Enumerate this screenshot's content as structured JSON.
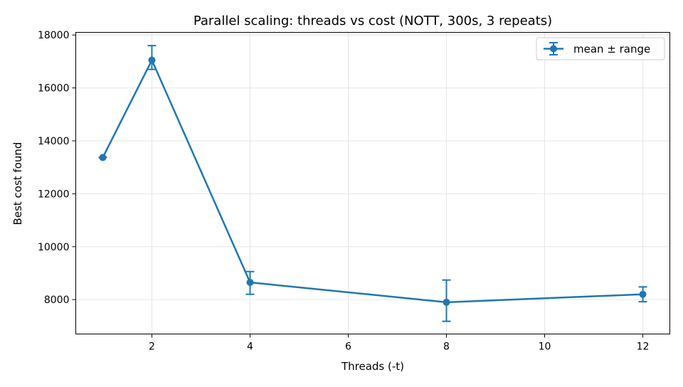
{
  "chart_data": {
    "type": "line",
    "title": "Parallel scaling: threads vs cost (NOTT, 300s, 3 repeats)",
    "xlabel": "Threads (-t)",
    "ylabel": "Best cost found",
    "xlim": [
      0.45,
      12.55
    ],
    "ylim": [
      6700,
      18100
    ],
    "xticks": [
      2,
      4,
      6,
      8,
      10,
      12
    ],
    "yticks": [
      8000,
      10000,
      12000,
      14000,
      16000,
      18000
    ],
    "grid": true,
    "legend_position": "top-right",
    "series": [
      {
        "name": "mean ± range",
        "color": "#1f77b4",
        "x": [
          1,
          2,
          4,
          8,
          12
        ],
        "y": [
          13370,
          17050,
          8650,
          7900,
          8200
        ],
        "y_min": [
          13370,
          16700,
          8200,
          7180,
          7920
        ],
        "y_max": [
          13370,
          17600,
          9060,
          8740,
          8480
        ]
      }
    ]
  }
}
